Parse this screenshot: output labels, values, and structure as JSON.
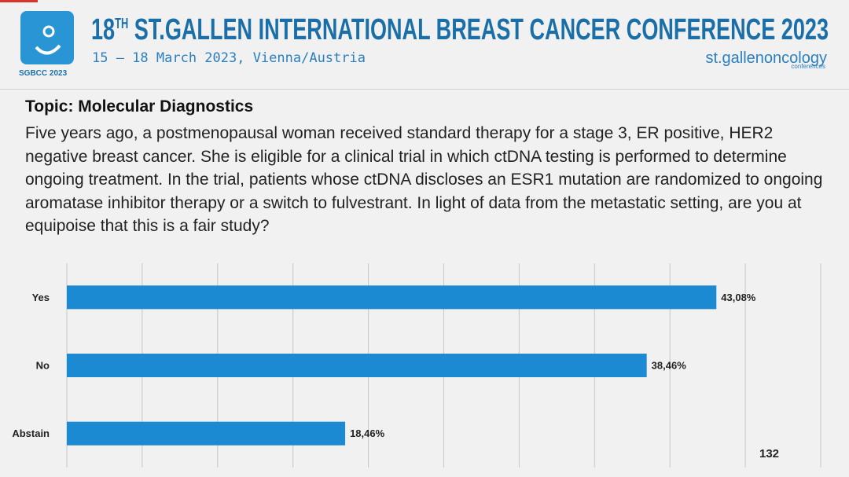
{
  "header": {
    "title_number": "18",
    "title_sup": "TH",
    "title_rest": " ST.GALLEN INTERNATIONAL BREAST CANCER CONFERENCE 2023",
    "subtitle": "15 – 18 March 2023, Vienna/Austria",
    "logo_text": "SGBCC 2023",
    "brand": "st.gallenoncology",
    "brand_sub": "conferences"
  },
  "slide": {
    "topic": "Topic: Molecular Diagnostics",
    "question": "Five years ago, a postmenopausal woman received standard therapy for a stage 3, ER positive, HER2 negative breast cancer. She is eligible for a clinical trial in which ctDNA testing is performed to determine ongoing treatment. In the trial, patients whose ctDNA discloses an ESR1 mutation are randomized to ongoing aromatase inhibitor therapy or a switch to fulvestrant. In light of data from the metastatic setting, are you at equipoise that this is a fair study?",
    "count": "132"
  },
  "chart_data": {
    "type": "hbar",
    "categories": [
      "Yes",
      "No",
      "Abstain"
    ],
    "values": [
      43.08,
      38.46,
      18.46
    ],
    "value_labels": [
      "43,08%",
      "38,46%",
      "18,46%"
    ],
    "color": "#1b8ad3",
    "xlim": [
      0,
      50
    ],
    "xticks": [
      0,
      5,
      10,
      15,
      20,
      25,
      30,
      35,
      40,
      45,
      50
    ],
    "grid": true
  }
}
